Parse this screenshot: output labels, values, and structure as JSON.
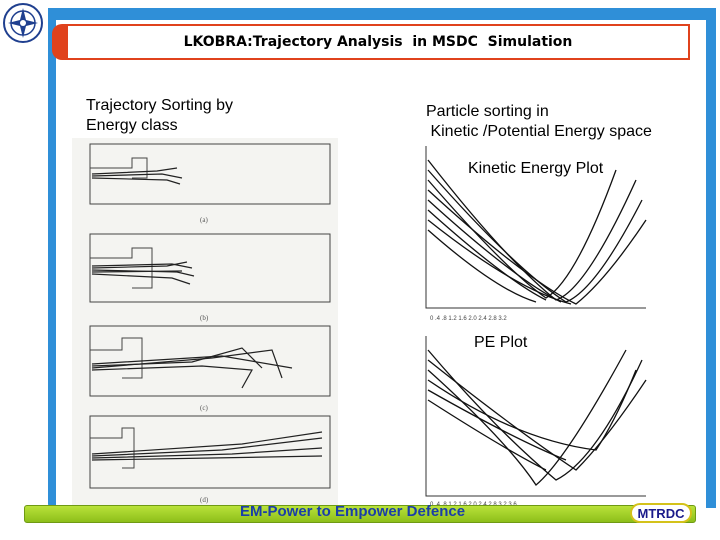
{
  "slide": {
    "title": "LKOBRA:Trajectory Analysis  in MSDC  Simulation",
    "left_panel": {
      "heading_line1": "Trajectory Sorting by",
      "heading_line2": "Energy class"
    },
    "right_panel": {
      "heading_line1": "Particle sorting in",
      "heading_line2": " Kinetic /Potential Energy space",
      "ke_label": "Kinetic Energy Plot",
      "pe_label": "PE Plot"
    },
    "footer": "EM-Power to Empower Defence",
    "badge": "MTRDC"
  },
  "colors": {
    "frame": "#2f8fd8",
    "title_border": "#e0421c",
    "footer_bar": "#a6d42a",
    "footer_text": "#1a3ea8"
  }
}
